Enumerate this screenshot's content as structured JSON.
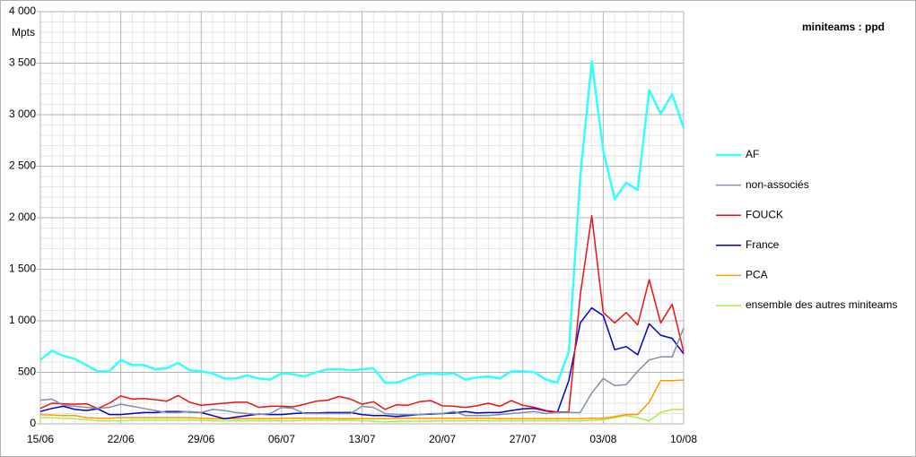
{
  "chart_data": {
    "type": "line",
    "title": "miniteams : ppd",
    "y_label": "Mpts",
    "categories": [
      "15/06",
      null,
      null,
      null,
      null,
      null,
      null,
      "22/06",
      null,
      null,
      null,
      null,
      null,
      null,
      "29/06",
      null,
      null,
      null,
      null,
      null,
      null,
      "06/07",
      null,
      null,
      null,
      null,
      null,
      null,
      "13/07",
      null,
      null,
      null,
      null,
      null,
      null,
      "20/07",
      null,
      null,
      null,
      null,
      null,
      null,
      "27/07",
      null,
      null,
      null,
      null,
      null,
      null,
      "03/08",
      null,
      null,
      null,
      null,
      null,
      null,
      "10/08"
    ],
    "ylim": [
      0,
      4000
    ],
    "yticks": [
      0,
      {
        "value": 500,
        "label": "500"
      },
      {
        "value": 1000,
        "label": "1 000"
      },
      {
        "value": 1500,
        "label": "1 500"
      },
      {
        "value": 2000,
        "label": "2 000"
      },
      {
        "value": 2500,
        "label": "2 500"
      },
      {
        "value": 3000,
        "label": "3 000"
      },
      {
        "value": 3500,
        "label": "3 500"
      },
      {
        "value": 4000,
        "label": "4 000"
      }
    ],
    "grid": true,
    "legend": "right",
    "series": [
      {
        "name": "AF",
        "color": "#33ffff",
        "values": [
          620,
          710,
          660,
          630,
          570,
          510,
          510,
          620,
          570,
          570,
          530,
          540,
          590,
          520,
          510,
          490,
          440,
          440,
          470,
          440,
          430,
          490,
          480,
          460,
          500,
          530,
          530,
          520,
          530,
          540,
          400,
          400,
          440,
          480,
          490,
          480,
          490,
          430,
          450,
          460,
          440,
          510,
          510,
          500,
          430,
          400,
          700,
          2400,
          3520,
          2650,
          2180,
          2340,
          2270,
          3240,
          3010,
          3200,
          2870
        ]
      },
      {
        "name": "non-associés",
        "color": "#8090a8",
        "values": [
          230,
          240,
          180,
          170,
          160,
          150,
          160,
          190,
          170,
          150,
          130,
          110,
          110,
          120,
          110,
          140,
          130,
          110,
          100,
          90,
          100,
          160,
          150,
          100,
          100,
          100,
          100,
          100,
          170,
          160,
          100,
          90,
          90,
          90,
          100,
          100,
          120,
          80,
          80,
          80,
          90,
          100,
          110,
          120,
          100,
          110,
          110,
          110,
          300,
          440,
          370,
          380,
          510,
          620,
          650,
          650,
          930
        ]
      },
      {
        "name": "FOUCK",
        "color": "#ee1111",
        "values": [
          150,
          200,
          195,
          190,
          195,
          150,
          200,
          270,
          240,
          245,
          235,
          220,
          275,
          210,
          180,
          190,
          200,
          210,
          210,
          160,
          170,
          170,
          165,
          190,
          220,
          230,
          265,
          240,
          190,
          215,
          140,
          185,
          180,
          215,
          225,
          175,
          170,
          160,
          175,
          200,
          170,
          225,
          180,
          160,
          130,
          115,
          115,
          1250,
          2020,
          1080,
          980,
          1080,
          960,
          1400,
          980,
          1160,
          700
        ]
      },
      {
        "name": "France",
        "color": "#0000cc",
        "values": [
          120,
          150,
          170,
          140,
          130,
          145,
          90,
          90,
          100,
          110,
          110,
          120,
          120,
          115,
          110,
          80,
          50,
          65,
          80,
          95,
          90,
          90,
          100,
          105,
          105,
          110,
          110,
          110,
          90,
          80,
          80,
          70,
          80,
          90,
          95,
          100,
          105,
          120,
          105,
          110,
          110,
          130,
          145,
          150,
          125,
          110,
          420,
          980,
          1125,
          1050,
          720,
          750,
          670,
          970,
          860,
          830,
          680
        ]
      },
      {
        "name": "PCA",
        "color": "#ff9900",
        "values": [
          90,
          85,
          80,
          80,
          60,
          55,
          55,
          60,
          60,
          60,
          60,
          60,
          60,
          60,
          55,
          50,
          50,
          50,
          50,
          50,
          50,
          55,
          55,
          55,
          55,
          55,
          50,
          50,
          50,
          50,
          50,
          55,
          55,
          55,
          55,
          55,
          55,
          55,
          55,
          55,
          50,
          50,
          50,
          50,
          50,
          50,
          50,
          50,
          55,
          55,
          70,
          90,
          90,
          210,
          420,
          420,
          425
        ]
      },
      {
        "name": "ensemble des autres miniteams",
        "color": "#aaee44",
        "values": [
          60,
          60,
          55,
          50,
          40,
          30,
          30,
          30,
          35,
          35,
          35,
          35,
          35,
          35,
          35,
          30,
          30,
          30,
          30,
          30,
          30,
          30,
          30,
          35,
          35,
          35,
          35,
          35,
          30,
          25,
          20,
          25,
          25,
          25,
          25,
          30,
          30,
          30,
          30,
          30,
          30,
          30,
          30,
          30,
          30,
          30,
          30,
          30,
          35,
          40,
          60,
          80,
          60,
          30,
          110,
          140,
          140
        ]
      }
    ]
  }
}
